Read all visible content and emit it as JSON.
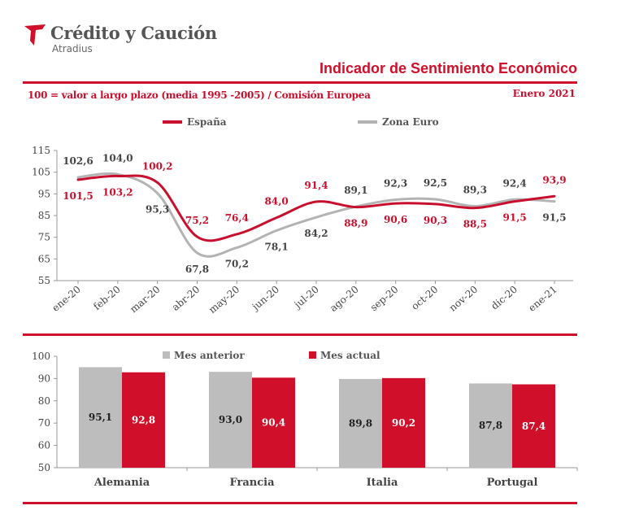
{
  "brand": {
    "name": "Crédito y Caución",
    "sub": "Atradius",
    "color": "#d0102a"
  },
  "title": "Indicador de Sentimiento Económico",
  "subtitle": "100 = valor a largo plazo (media 1995 -2005) / Comisión Europea",
  "date": "Enero 2021",
  "chart_data": [
    {
      "type": "line",
      "x": [
        "ene-20",
        "feb-20",
        "mar-20",
        "abr-20",
        "may-20",
        "jun-20",
        "jul-20",
        "ago-20",
        "sep-20",
        "oct-20",
        "nov-20",
        "dic-20",
        "ene-21"
      ],
      "series": [
        {
          "name": "España",
          "color": "#c8102e",
          "values": [
            101.5,
            103.2,
            100.2,
            75.2,
            76.4,
            84.0,
            91.4,
            88.9,
            90.6,
            90.3,
            88.5,
            91.5,
            93.9
          ]
        },
        {
          "name": "Zona Euro",
          "color": "#b3b3b3",
          "values": [
            102.6,
            104.0,
            95.3,
            67.8,
            70.2,
            78.1,
            84.2,
            89.1,
            92.3,
            92.5,
            89.3,
            92.4,
            91.5
          ]
        }
      ],
      "ylim": [
        55,
        115
      ],
      "yticks": [
        55,
        65,
        75,
        85,
        95,
        105,
        115
      ],
      "legend": "top-center",
      "grid": false
    },
    {
      "type": "bar",
      "categories": [
        "Alemania",
        "Francia",
        "Italia",
        "Portugal"
      ],
      "series": [
        {
          "name": "Mes anterior",
          "color": "#bdbdbd",
          "values": [
            95.1,
            93.0,
            89.8,
            87.8
          ]
        },
        {
          "name": "Mes actual",
          "color": "#d0102a",
          "values": [
            92.8,
            90.4,
            90.2,
            87.4
          ]
        }
      ],
      "ylim": [
        50,
        100
      ],
      "yticks": [
        50,
        60,
        70,
        80,
        90,
        100
      ],
      "legend": "top-center",
      "grid": false
    }
  ]
}
